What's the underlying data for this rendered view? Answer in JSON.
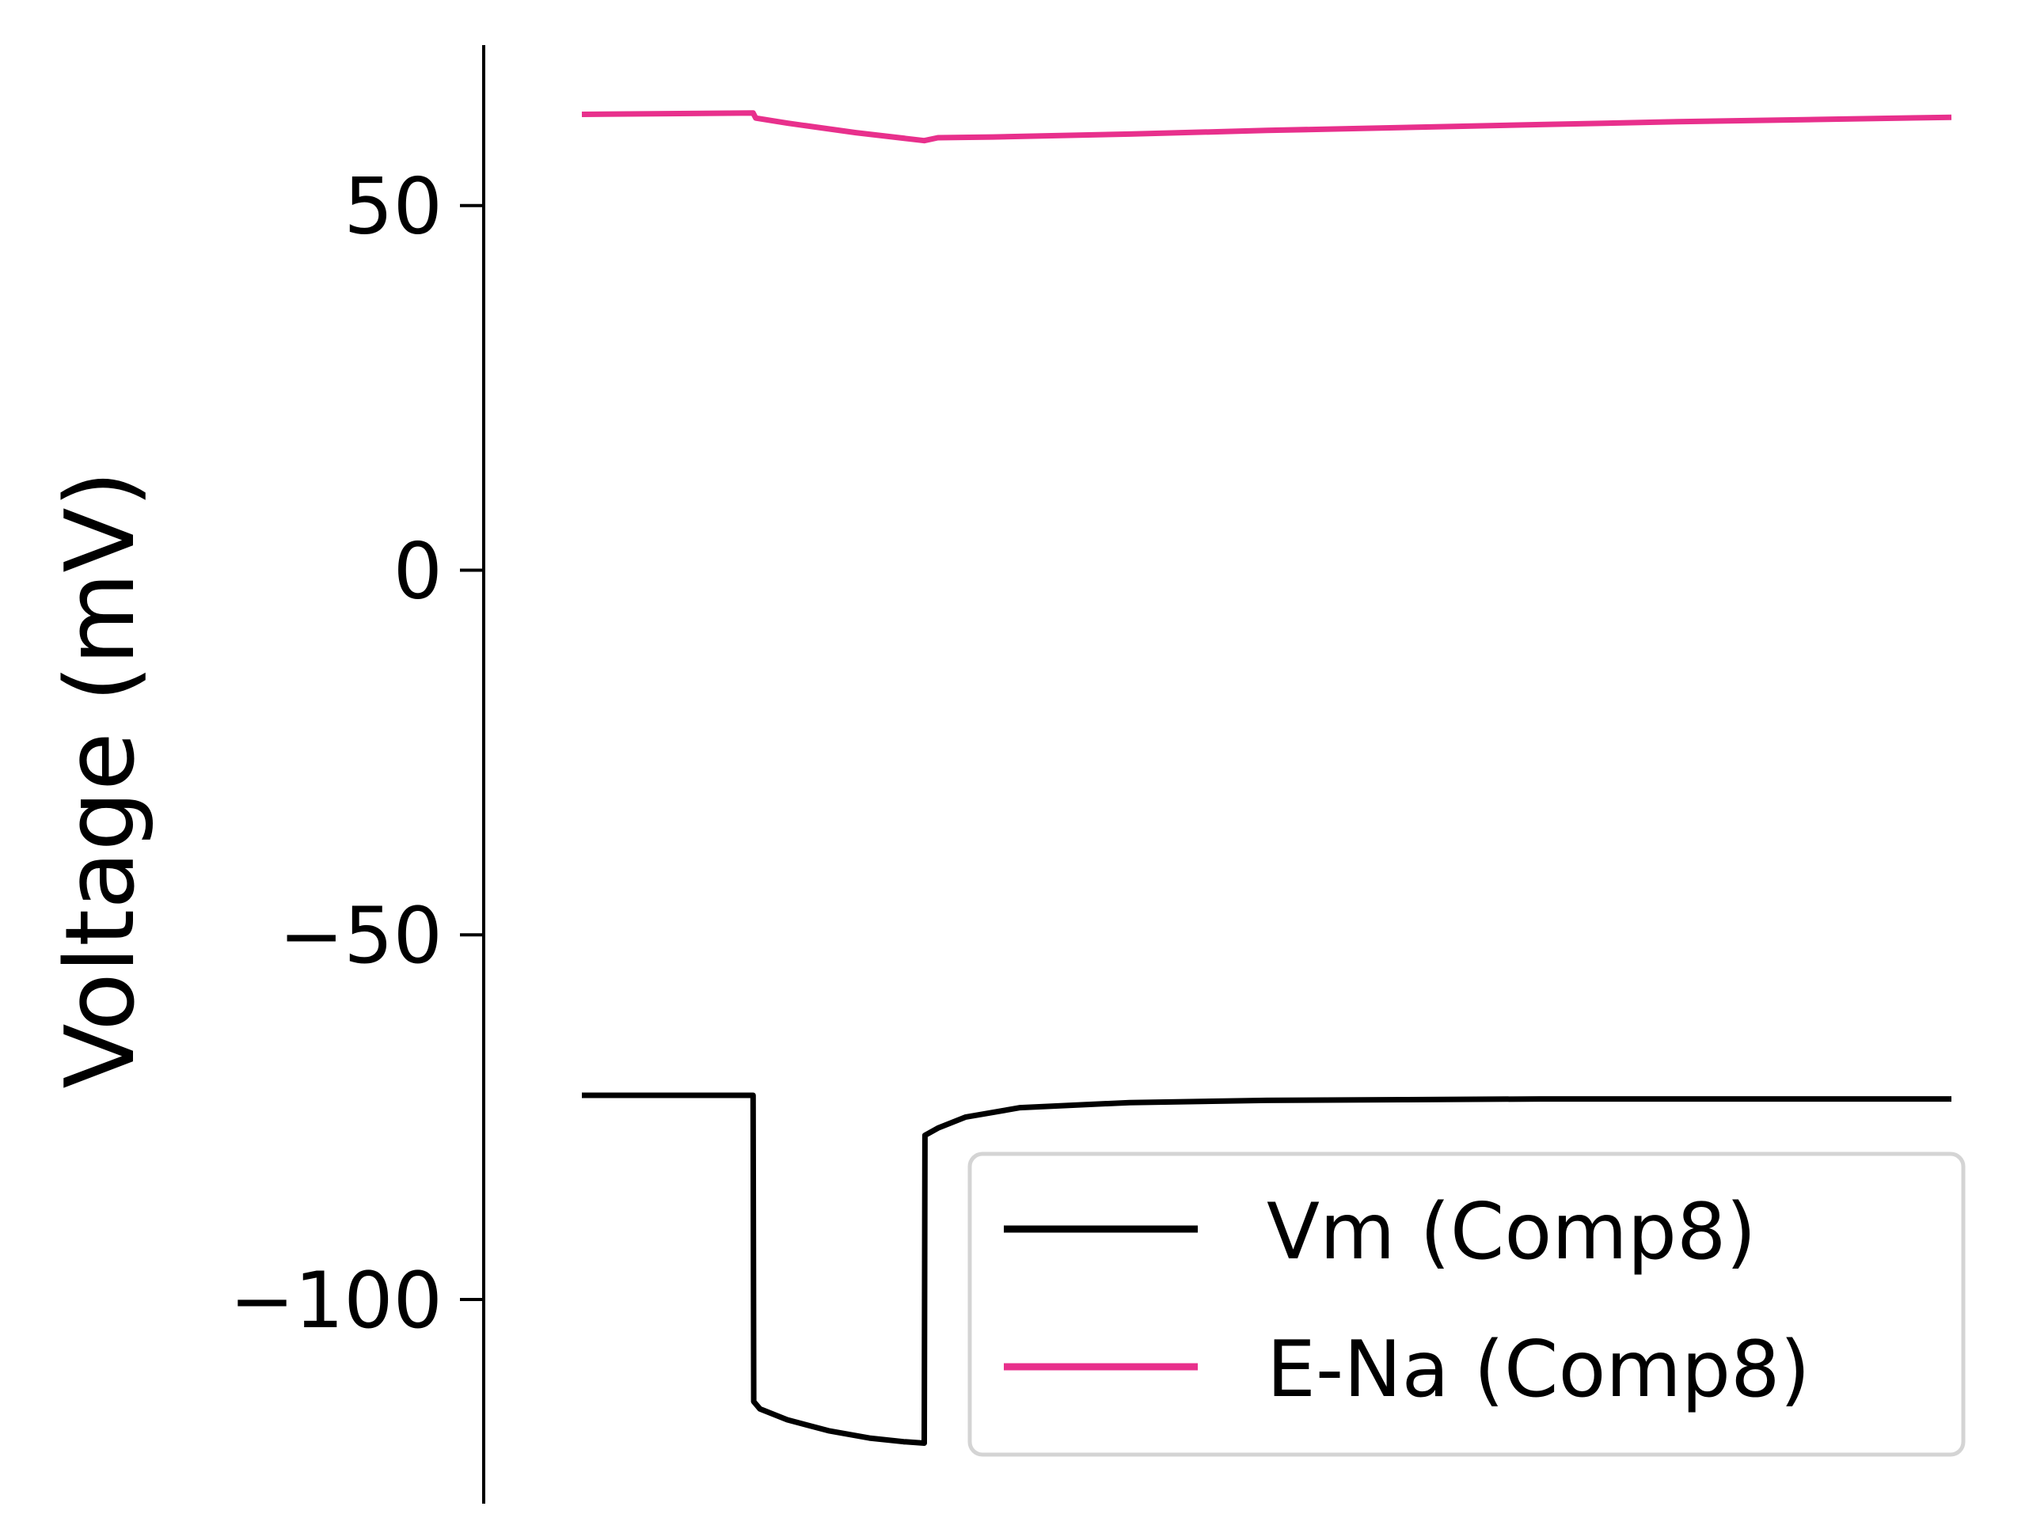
{
  "chart_data": {
    "type": "line",
    "title": "",
    "xlabel": "",
    "ylabel": "Voltage (mV)",
    "ylim": [
      -128,
      72
    ],
    "xlim": [
      0,
      1
    ],
    "yticks": [
      50,
      0,
      -50,
      -100
    ],
    "ytick_labels": [
      "50",
      "0",
      "−50",
      "−100"
    ],
    "x_axis_visible": false,
    "grid": false,
    "legend_position": "bottom-right",
    "series": [
      {
        "name": "Vm (Comp8)",
        "color": "#000000",
        "x": [
          0.0,
          0.125,
          0.1255,
          0.13,
          0.15,
          0.18,
          0.21,
          0.235,
          0.25,
          0.2505,
          0.26,
          0.28,
          0.32,
          0.4,
          0.5,
          0.6,
          0.7,
          0.8,
          0.9,
          1.0
        ],
        "y": [
          -72.0,
          -72.0,
          -114.0,
          -115.0,
          -116.5,
          -118.0,
          -119.0,
          -119.5,
          -119.7,
          -77.5,
          -76.5,
          -75.0,
          -73.7,
          -73.0,
          -72.7,
          -72.6,
          -72.5,
          -72.5,
          -72.5,
          -72.5
        ]
      },
      {
        "name": "E-Na (Comp8)",
        "color": "#e8308c",
        "x": [
          0.0,
          0.125,
          0.127,
          0.15,
          0.2,
          0.25,
          0.26,
          0.3,
          0.4,
          0.5,
          0.6,
          0.7,
          0.8,
          0.9,
          1.0
        ],
        "y": [
          62.5,
          62.7,
          62.0,
          61.3,
          60.0,
          58.9,
          59.3,
          59.4,
          59.8,
          60.3,
          60.7,
          61.1,
          61.5,
          61.8,
          62.1
        ]
      }
    ]
  }
}
